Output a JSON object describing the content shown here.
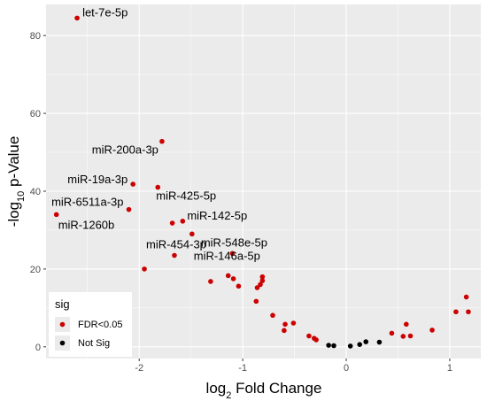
{
  "chart_data": {
    "type": "scatter",
    "title": "",
    "xlabel": "log2 Fold Change",
    "xlabel_main": "log",
    "xlabel_sub": "2",
    "xlabel_rest": " Fold Change",
    "ylabel": "-log10 p-Value",
    "ylabel_main": "-log",
    "ylabel_sub": "10",
    "ylabel_rest": " p-Value",
    "xlim": [
      -2.9,
      1.3
    ],
    "ylim": [
      -3,
      88
    ],
    "x_ticks": [
      -2,
      -1,
      0,
      1
    ],
    "y_ticks": [
      0,
      20,
      40,
      60,
      80
    ],
    "grid": true,
    "background_color": "#ebebeb",
    "legend": {
      "title": "sig",
      "placement": "bottom-left",
      "entries": [
        {
          "label": "FDR<0.05",
          "color": "#cc0000"
        },
        {
          "label": "Not Sig",
          "color": "#000000"
        }
      ]
    },
    "series": [
      {
        "name": "FDR<0.05",
        "color": "#cc0000",
        "points": [
          {
            "x": -2.6,
            "y": 84.5,
            "label": "let-7e-5p"
          },
          {
            "x": -1.78,
            "y": 52.8,
            "label": "miR-200a-3p"
          },
          {
            "x": -2.06,
            "y": 41.8,
            "label": "miR-19a-3p"
          },
          {
            "x": -1.82,
            "y": 41.0,
            "label": "miR-425-5p"
          },
          {
            "x": -2.1,
            "y": 35.3,
            "label": "miR-6511a-3p"
          },
          {
            "x": -2.8,
            "y": 34.0,
            "label": "miR-1260b"
          },
          {
            "x": -1.58,
            "y": 32.3,
            "label": "miR-142-5p"
          },
          {
            "x": -1.68,
            "y": 31.8,
            "label": ""
          },
          {
            "x": -1.49,
            "y": 29.0,
            "label": ""
          },
          {
            "x": -1.66,
            "y": 23.5,
            "label": "miR-454-3p"
          },
          {
            "x": -1.1,
            "y": 24.0,
            "label": "miR-548e-5p"
          },
          {
            "x": -1.95,
            "y": 20.0,
            "label": ""
          },
          {
            "x": -1.31,
            "y": 16.8,
            "label": ""
          },
          {
            "x": -1.14,
            "y": 18.3,
            "label": ""
          },
          {
            "x": -1.09,
            "y": 17.5,
            "label": ""
          },
          {
            "x": -1.04,
            "y": 15.6,
            "label": ""
          },
          {
            "x": -0.81,
            "y": 18.0,
            "label": "miR-146a-5p"
          },
          {
            "x": -0.81,
            "y": 17.0,
            "label": ""
          },
          {
            "x": -0.83,
            "y": 16.0,
            "label": ""
          },
          {
            "x": -0.86,
            "y": 15.2,
            "label": ""
          },
          {
            "x": -0.87,
            "y": 11.7,
            "label": ""
          },
          {
            "x": -0.71,
            "y": 8.1,
            "label": ""
          },
          {
            "x": -0.59,
            "y": 5.8,
            "label": ""
          },
          {
            "x": -0.6,
            "y": 4.2,
            "label": ""
          },
          {
            "x": -0.51,
            "y": 6.1,
            "label": ""
          },
          {
            "x": -0.36,
            "y": 2.8,
            "label": ""
          },
          {
            "x": -0.31,
            "y": 2.2,
            "label": ""
          },
          {
            "x": -0.29,
            "y": 1.8,
            "label": ""
          },
          {
            "x": 0.44,
            "y": 3.5,
            "label": ""
          },
          {
            "x": 0.55,
            "y": 2.7,
            "label": ""
          },
          {
            "x": 0.58,
            "y": 5.8,
            "label": ""
          },
          {
            "x": 0.62,
            "y": 2.8,
            "label": ""
          },
          {
            "x": 0.83,
            "y": 4.3,
            "label": ""
          },
          {
            "x": 1.06,
            "y": 9.0,
            "label": ""
          },
          {
            "x": 1.16,
            "y": 12.8,
            "label": ""
          },
          {
            "x": 1.18,
            "y": 9.0,
            "label": ""
          }
        ]
      },
      {
        "name": "Not Sig",
        "color": "#000000",
        "points": [
          {
            "x": -0.17,
            "y": 0.4,
            "label": ""
          },
          {
            "x": -0.12,
            "y": 0.3,
            "label": ""
          },
          {
            "x": 0.04,
            "y": 0.2,
            "label": ""
          },
          {
            "x": 0.13,
            "y": 0.6,
            "label": ""
          },
          {
            "x": 0.19,
            "y": 1.3,
            "label": ""
          },
          {
            "x": 0.32,
            "y": 1.2,
            "label": ""
          }
        ]
      }
    ]
  }
}
